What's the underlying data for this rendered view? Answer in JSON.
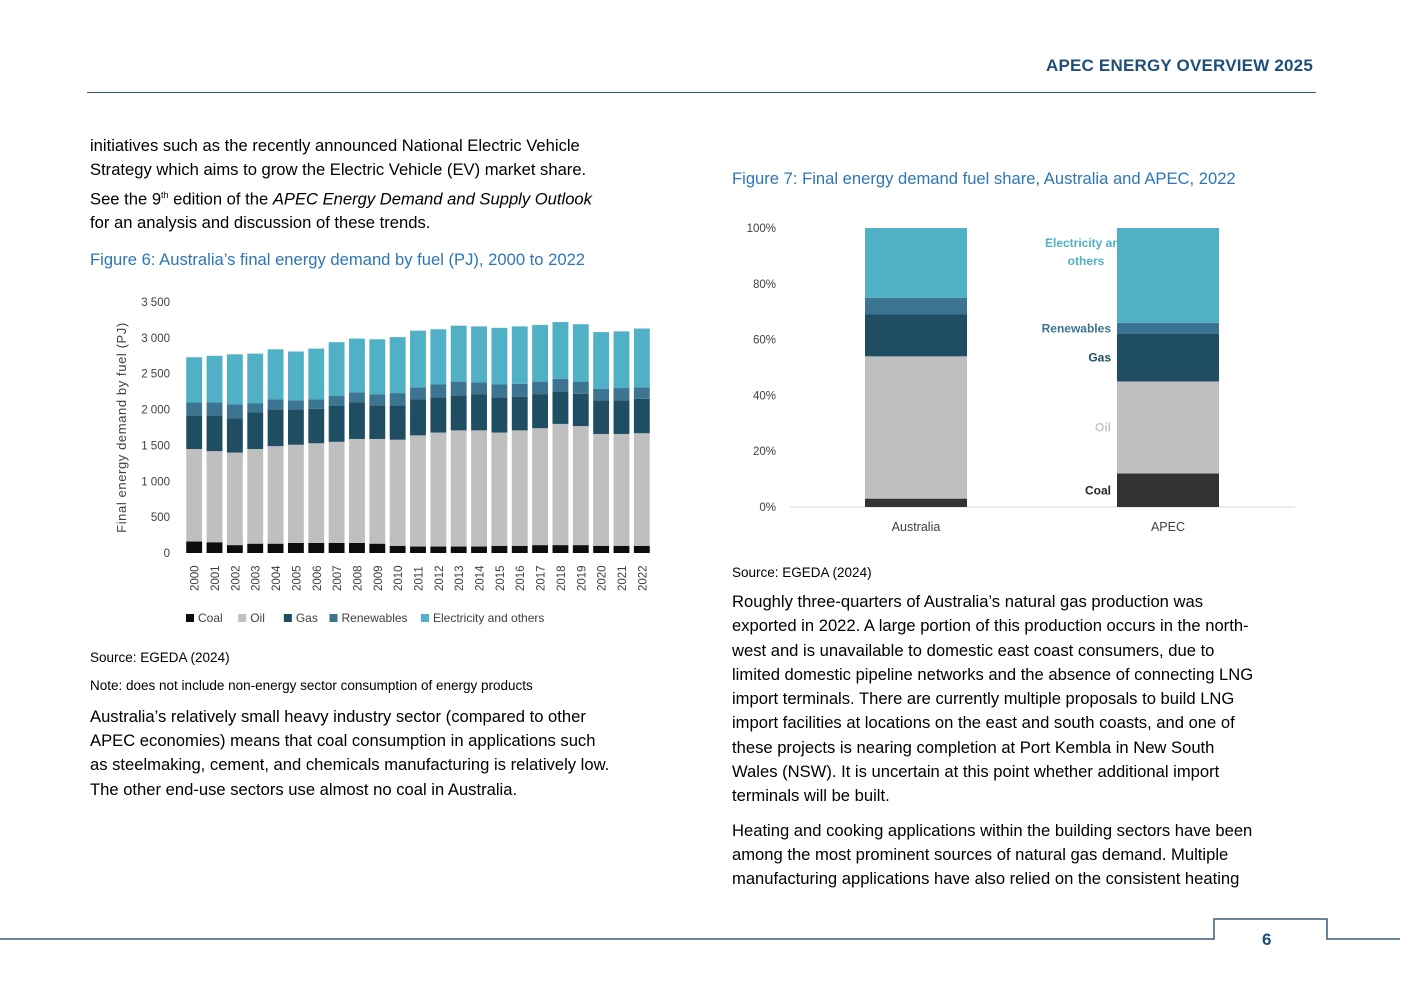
{
  "header": {
    "title": "APEC ENERGY OVERVIEW 2025"
  },
  "left": {
    "intro": {
      "line1": "initiatives such as the recently announced National Electric Vehicle",
      "line2": "Strategy which aims to grow the Electric Vehicle (EV) market share.",
      "line3_pre": "See the 9",
      "line3_sup": "th",
      "line3_mid": " edition of the ",
      "line3_italic": "APEC Energy Demand and Supply Outlook",
      "line4": "for an analysis and discussion of these trends."
    },
    "figure6_title": "Figure 6: Australia’s final energy demand by fuel (PJ), 2000 to 2022",
    "figure6_source": "Source: EGEDA (2024)",
    "figure6_note": "Note: does not include non-energy sector consumption of energy products",
    "para2": [
      "Australia’s relatively small heavy industry sector (compared to other",
      "APEC economies) means that coal consumption in applications such",
      "as steelmaking, cement, and chemicals manufacturing is relatively low.",
      "The other end-use sectors use almost no coal in Australia."
    ]
  },
  "right": {
    "figure7_title": "Figure 7: Final energy demand fuel share, Australia and APEC, 2022",
    "figure7_source": "Source: EGEDA (2024)",
    "para1": [
      "Roughly three-quarters of Australia’s natural gas production was",
      "exported in 2022. A large portion of this production occurs in the north-",
      "west and is unavailable to domestic east coast consumers, due to",
      "limited domestic pipeline networks and the absence of connecting LNG",
      "import terminals. There are currently multiple proposals to build LNG",
      "import facilities at locations on the east and south coasts, and one of",
      "these projects is nearing completion at Port Kembla in New South",
      "Wales (NSW). It is uncertain at this point whether additional import",
      "terminals will be built."
    ],
    "para2": [
      "Heating and cooking applications within the building sectors have been",
      "among the most prominent sources of natural gas demand. Multiple",
      "manufacturing applications have also relied on the consistent heating"
    ]
  },
  "colors": {
    "coal": "#0d0d0d",
    "oil": "#bfbfbf",
    "gas": "#1f4e62",
    "renewables": "#3b7591",
    "electricity": "#4fb0c6",
    "coal7": "#333333",
    "figure_title": "#2e75b6",
    "header": "#1f4e79"
  },
  "chart_data": [
    {
      "type": "bar",
      "stacked": true,
      "title": "",
      "xlabel": "",
      "ylabel": "Final energy demand  by fuel (PJ)",
      "ylim": [
        0,
        3500
      ],
      "yticks": [
        "0",
        "500",
        "1 000",
        "1 500",
        "2 000",
        "2 500",
        "3 000",
        "3 500"
      ],
      "categories": [
        "2000",
        "2001",
        "2002",
        "2003",
        "2004",
        "2005",
        "2006",
        "2007",
        "2008",
        "2009",
        "2010",
        "2011",
        "2012",
        "2013",
        "2014",
        "2015",
        "2016",
        "2017",
        "2018",
        "2019",
        "2020",
        "2021",
        "2022"
      ],
      "series": [
        {
          "name": "Coal",
          "color": "#0d0d0d",
          "values": [
            160,
            150,
            110,
            130,
            130,
            140,
            140,
            140,
            140,
            130,
            100,
            90,
            90,
            90,
            90,
            100,
            100,
            110,
            110,
            110,
            100,
            100,
            100
          ]
        },
        {
          "name": "Oil",
          "color": "#bfbfbf",
          "values": [
            1290,
            1270,
            1290,
            1320,
            1360,
            1370,
            1390,
            1410,
            1450,
            1460,
            1480,
            1550,
            1590,
            1620,
            1620,
            1580,
            1610,
            1630,
            1690,
            1660,
            1560,
            1560,
            1570
          ]
        },
        {
          "name": "Gas",
          "color": "#1f4e62",
          "values": [
            470,
            500,
            480,
            510,
            510,
            490,
            480,
            500,
            510,
            470,
            480,
            500,
            490,
            490,
            500,
            490,
            470,
            470,
            450,
            450,
            470,
            470,
            480
          ]
        },
        {
          "name": "Renewables",
          "color": "#3b7591",
          "values": [
            180,
            180,
            190,
            130,
            140,
            130,
            130,
            140,
            140,
            150,
            170,
            170,
            180,
            190,
            170,
            180,
            180,
            180,
            180,
            170,
            160,
            170,
            160
          ]
        },
        {
          "name": "Electricity and others",
          "color": "#4fb0c6",
          "values": [
            630,
            650,
            700,
            690,
            700,
            680,
            710,
            750,
            750,
            770,
            780,
            790,
            770,
            780,
            780,
            790,
            800,
            790,
            790,
            800,
            790,
            790,
            820
          ]
        }
      ],
      "legend": "bottom"
    },
    {
      "type": "bar",
      "stacked": true,
      "normalized": true,
      "title": "",
      "yticks": [
        "0%",
        "20%",
        "40%",
        "60%",
        "80%",
        "100%"
      ],
      "ylim": [
        0,
        100
      ],
      "categories": [
        "Australia",
        "APEC"
      ],
      "series": [
        {
          "name": "Coal",
          "color": "#333333",
          "values": [
            3,
            12
          ]
        },
        {
          "name": "Oil",
          "color": "#bfbfbf",
          "values": [
            51,
            33
          ]
        },
        {
          "name": "Gas",
          "color": "#1f4e62",
          "values": [
            15,
            17
          ]
        },
        {
          "name": "Renewables",
          "color": "#3b7591",
          "values": [
            6,
            4
          ]
        },
        {
          "name": "Electricity and others",
          "color": "#4fb0c6",
          "values": [
            25,
            34
          ]
        }
      ],
      "labels": {
        "electricity": [
          "Electricity and",
          "others"
        ],
        "renewables": "Renewables",
        "gas": "Gas",
        "oil": "Oil",
        "coal": "Coal"
      },
      "legend": "inline-right"
    }
  ],
  "footer": {
    "page_number": "6"
  }
}
